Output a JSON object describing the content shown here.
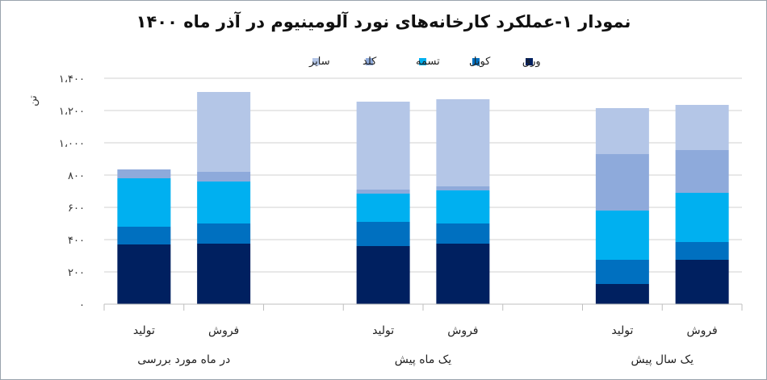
{
  "chart_data": {
    "type": "bar",
    "stacked": true,
    "title": "نمودار ۱-عملکرد کارخانه‌های نورد آلومینیوم در آذر ماه ۱۴۰۰",
    "ylabel": "تن",
    "ylim": [
      0,
      1400
    ],
    "yticks": [
      0,
      200,
      400,
      600,
      800,
      1000,
      1200,
      1400
    ],
    "ytick_labels": [
      "۰",
      "۲۰۰",
      "۴۰۰",
      "۶۰۰",
      "۸۰۰",
      "۱،۰۰۰",
      "۱،۲۰۰",
      "۱،۴۰۰"
    ],
    "grid": true,
    "legend_position": "top",
    "groups": [
      {
        "label": "در ماه مورد بررسی",
        "bars": [
          {
            "label": "تولید",
            "values": [
              370,
              110,
              300,
              55,
              0
            ]
          },
          {
            "label": "فروش",
            "values": [
              375,
              125,
              260,
              60,
              495
            ]
          }
        ]
      },
      {
        "label": "یک ماه پیش",
        "bars": [
          {
            "label": "تولید",
            "values": [
              360,
              150,
              175,
              25,
              545
            ]
          },
          {
            "label": "فروش",
            "values": [
              375,
              125,
              205,
              25,
              540
            ]
          }
        ]
      },
      {
        "label": "یک سال پیش",
        "bars": [
          {
            "label": "تولید",
            "values": [
              125,
              150,
              305,
              350,
              285
            ]
          },
          {
            "label": "فروش",
            "values": [
              275,
              110,
              305,
              265,
              280
            ]
          }
        ]
      }
    ],
    "series": [
      {
        "name": "ورق",
        "color": "#002060"
      },
      {
        "name": "کویل",
        "color": "#0070c0"
      },
      {
        "name": "تسمه",
        "color": "#00b0f0"
      },
      {
        "name": "کلد",
        "color": "#8eaadb"
      },
      {
        "name": "سایر",
        "color": "#b4c6e7"
      }
    ]
  }
}
